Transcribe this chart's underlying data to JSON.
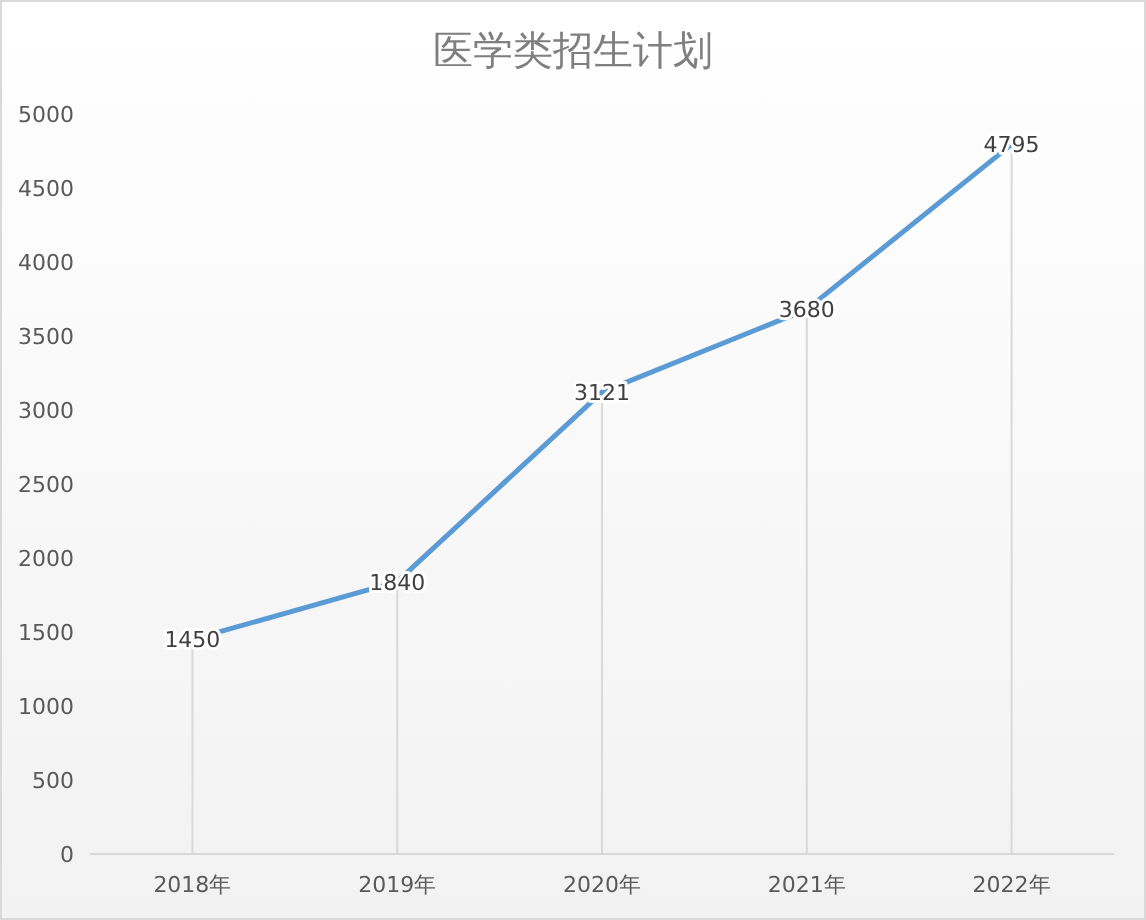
{
  "chart_data": {
    "type": "line",
    "title": "医学类招生计划",
    "categories": [
      "2018年",
      "2019年",
      "2020年",
      "2021年",
      "2022年"
    ],
    "values": [
      1450,
      1840,
      3121,
      3680,
      4795
    ],
    "color": "#5b9bd5",
    "ylim": [
      0,
      5000
    ],
    "yticks": [
      0,
      500,
      1000,
      1500,
      2000,
      2500,
      3000,
      3500,
      4000,
      4500,
      5000
    ],
    "data_labels": true,
    "grid": "x",
    "marker": "none",
    "line_style": "solid"
  }
}
